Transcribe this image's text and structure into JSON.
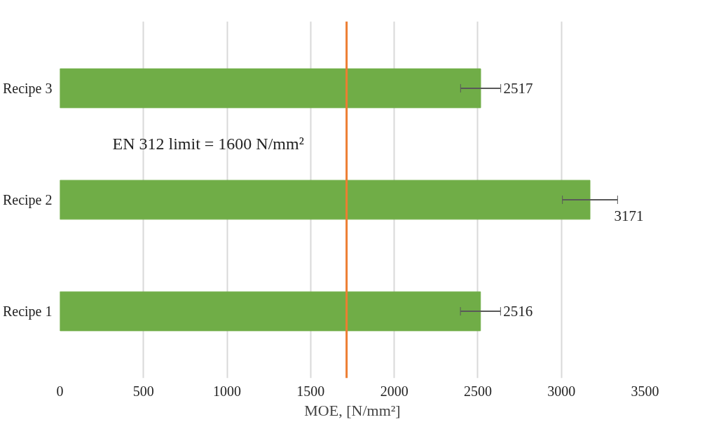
{
  "chart_data": {
    "type": "bar",
    "orientation": "horizontal",
    "xlabel": "MOE, [N/mm²]",
    "categories": [
      "Recipe 3",
      "Recipe 2",
      "Recipe 1"
    ],
    "values": [
      2517,
      3171,
      2516
    ],
    "errors": [
      120,
      165,
      120
    ],
    "color": "#70ad47",
    "data_labels": true,
    "xlim": [
      0,
      3500
    ],
    "xticks": [
      0,
      500,
      1000,
      1500,
      2000,
      2500,
      3000,
      3500
    ],
    "grid": "x",
    "annotations": [
      "EN 312 limit = 1600 N/mm²"
    ],
    "ref_lines": [
      {
        "axis": "x",
        "value": 1715,
        "color": "#ed7d31"
      }
    ]
  }
}
